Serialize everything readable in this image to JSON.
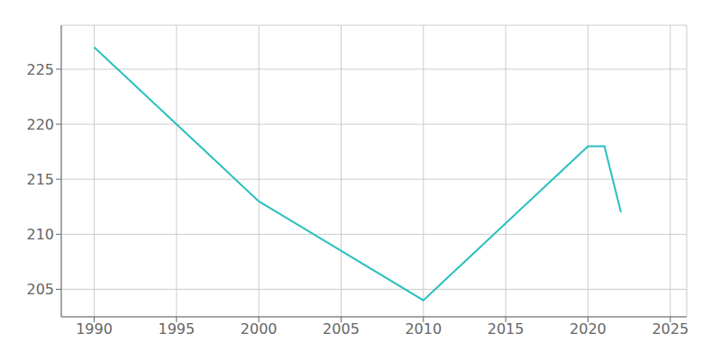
{
  "chart_data": {
    "type": "line",
    "x": [
      1990,
      2000,
      2010,
      2020,
      2021,
      2022
    ],
    "values": [
      227,
      213,
      204,
      218,
      218,
      212
    ],
    "color": "#2abfbf",
    "xlim": [
      1988,
      2026
    ],
    "ylim": [
      202.5,
      229
    ],
    "xticks": [
      1990,
      1995,
      2000,
      2005,
      2010,
      2015,
      2020,
      2025
    ],
    "yticks": [
      205,
      210,
      215,
      220,
      225
    ],
    "grid": true
  }
}
